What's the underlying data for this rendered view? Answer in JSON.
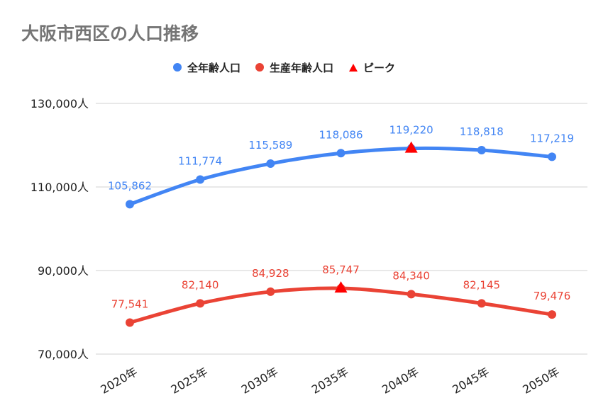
{
  "chart_data": {
    "type": "line",
    "title": "大阪市西区の人口推移",
    "categories": [
      "2020年",
      "2025年",
      "2030年",
      "2035年",
      "2040年",
      "2045年",
      "2050年"
    ],
    "series": [
      {
        "name": "全年齢人口",
        "color": "#4285f4",
        "values": [
          105862,
          111774,
          115589,
          118086,
          119220,
          118818,
          117219
        ],
        "labels": [
          "105,862",
          "111,774",
          "115,589",
          "118,086",
          "119,220",
          "118,818",
          "117,219"
        ],
        "peak_index": 4
      },
      {
        "name": "生産年齢人口",
        "color": "#ea4335",
        "values": [
          77541,
          82140,
          84928,
          85747,
          84340,
          82145,
          79476
        ],
        "labels": [
          "77,541",
          "82,140",
          "84,928",
          "85,747",
          "84,340",
          "82,145",
          "79,476"
        ],
        "peak_index": 3
      }
    ],
    "peak_legend": {
      "name": "ピーク",
      "color": "#ff0000",
      "marker": "triangle"
    },
    "yticks": [
      70000,
      90000,
      110000,
      130000
    ],
    "ytick_labels": [
      "70,000人",
      "90,000人",
      "110,000人",
      "130,000人"
    ],
    "ylim": [
      70000,
      130000
    ],
    "grid": true,
    "legend_position": "top"
  }
}
